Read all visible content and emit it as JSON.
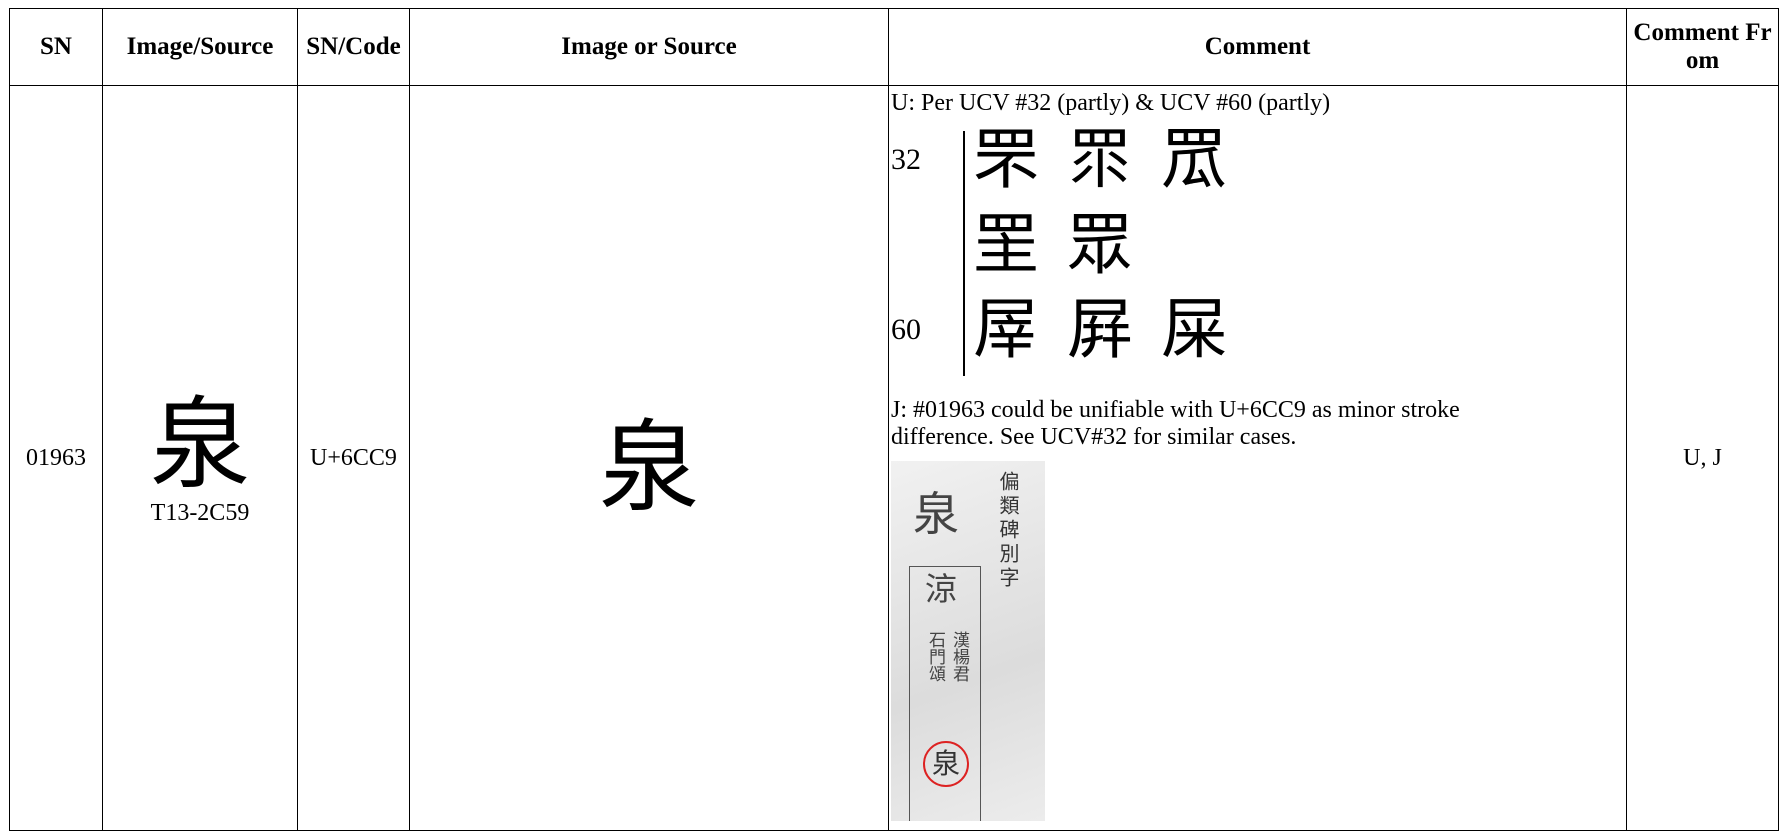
{
  "table": {
    "header": [
      "SN",
      "Image/Source",
      "SN/Code",
      "Image or Source",
      "Comment",
      "Comment From"
    ],
    "rows": [
      {
        "sn": "01963",
        "source_glyph": "泉",
        "source_code": "T13-2C59",
        "code": "U+6CC9",
        "image_glyph": "泉",
        "comment": {
          "u_text": "U: Per UCV #32 (partly) & UCV #60 (partly)",
          "ucv_figure": [
            {
              "label": "32",
              "glyphs": [
                "罘",
                "眔",
                "罛"
              ]
            },
            {
              "glyphs": [
                "罜",
                "眾"
              ]
            },
            {
              "label": "60",
              "glyphs": [
                "屖",
                "屛",
                "屎"
              ]
            }
          ],
          "j_text": "J: #01963 could be unifiable with U+6CC9 as minor stroke difference. See UCV#32 for similar cases.",
          "rubbing": {
            "heading": "偏類碑別字",
            "main": "泉",
            "variant": "涼",
            "source_a": "漢楊君",
            "source_b": "石門頌",
            "circled": "泉"
          }
        },
        "from": "U, J"
      }
    ]
  }
}
